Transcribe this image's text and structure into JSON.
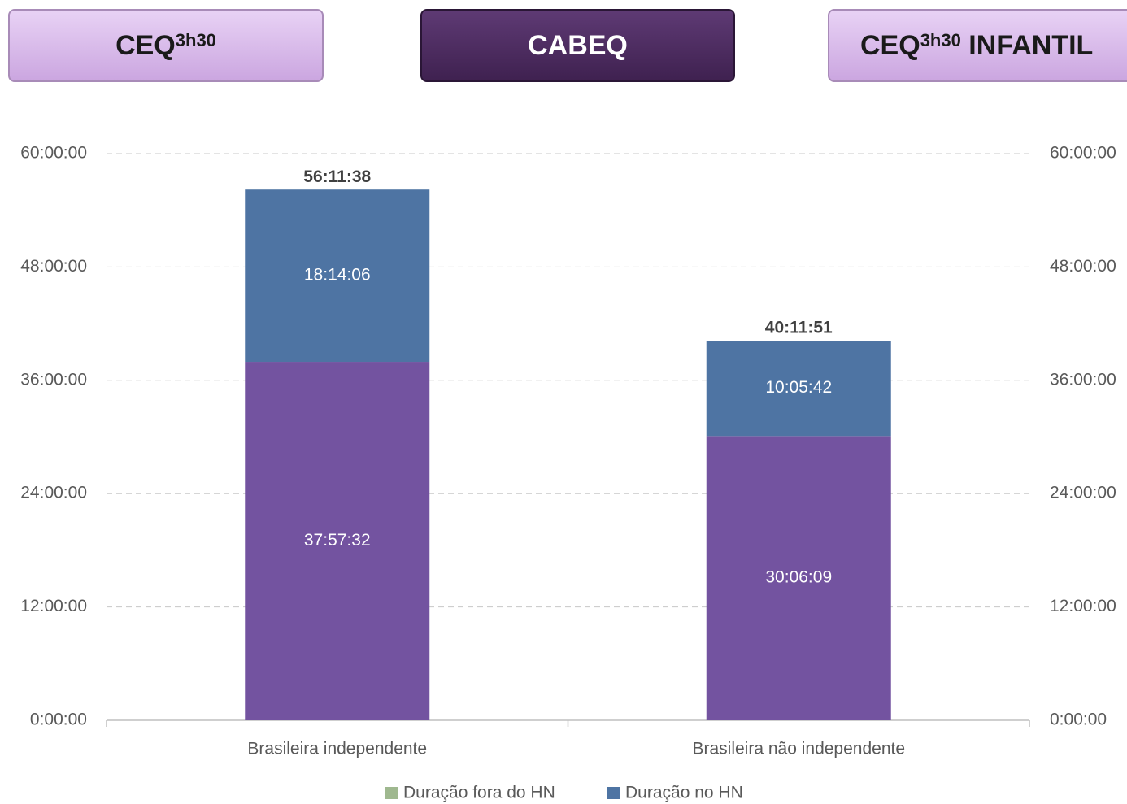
{
  "tabs": [
    {
      "label": "CEQ",
      "sup": "3h30"
    },
    {
      "label": "CABEQ"
    },
    {
      "label": "CEQ",
      "sup": "3h30",
      "suffix": "INFANTIL"
    }
  ],
  "chart_data": {
    "type": "stacked_bar",
    "categories": [
      "Brasileira independente",
      "Brasileira não independente"
    ],
    "series": [
      {
        "name": "Duração fora do HN",
        "color": "#7353a0",
        "legend_color": "#9fb88f",
        "values": [
          37.958889,
          30.1025
        ],
        "value_labels": [
          "37:57:32",
          "30:06:09"
        ]
      },
      {
        "name": "Duração no HN",
        "color": "#4e74a3",
        "legend_color": "#4e74a3",
        "values": [
          18.235,
          10.095
        ],
        "value_labels": [
          "18:14:06",
          "10:05:42"
        ]
      }
    ],
    "totals": [
      56.193889,
      40.1975
    ],
    "total_labels": [
      "56:11:38",
      "40:11:51"
    ],
    "ylim": [
      0,
      60
    ],
    "yticks": [
      {
        "value": 0,
        "label": "0:00:00"
      },
      {
        "value": 12,
        "label": "12:00:00"
      },
      {
        "value": 24,
        "label": "24:00:00"
      },
      {
        "value": 36,
        "label": "36:00:00"
      },
      {
        "value": 48,
        "label": "48:00:00"
      },
      {
        "value": 60,
        "label": "60:00:00"
      }
    ],
    "y2lim": [
      0,
      60
    ],
    "y2ticks": [
      {
        "value": 0,
        "label": "0:00:00"
      },
      {
        "value": 12,
        "label": "12:00:00"
      },
      {
        "value": 24,
        "label": "24:00:00"
      },
      {
        "value": 36,
        "label": "36:00:00"
      },
      {
        "value": 48,
        "label": "48:00:00"
      },
      {
        "value": 60,
        "label": "60:00:00"
      }
    ],
    "grid": true,
    "legend": "bottom"
  }
}
